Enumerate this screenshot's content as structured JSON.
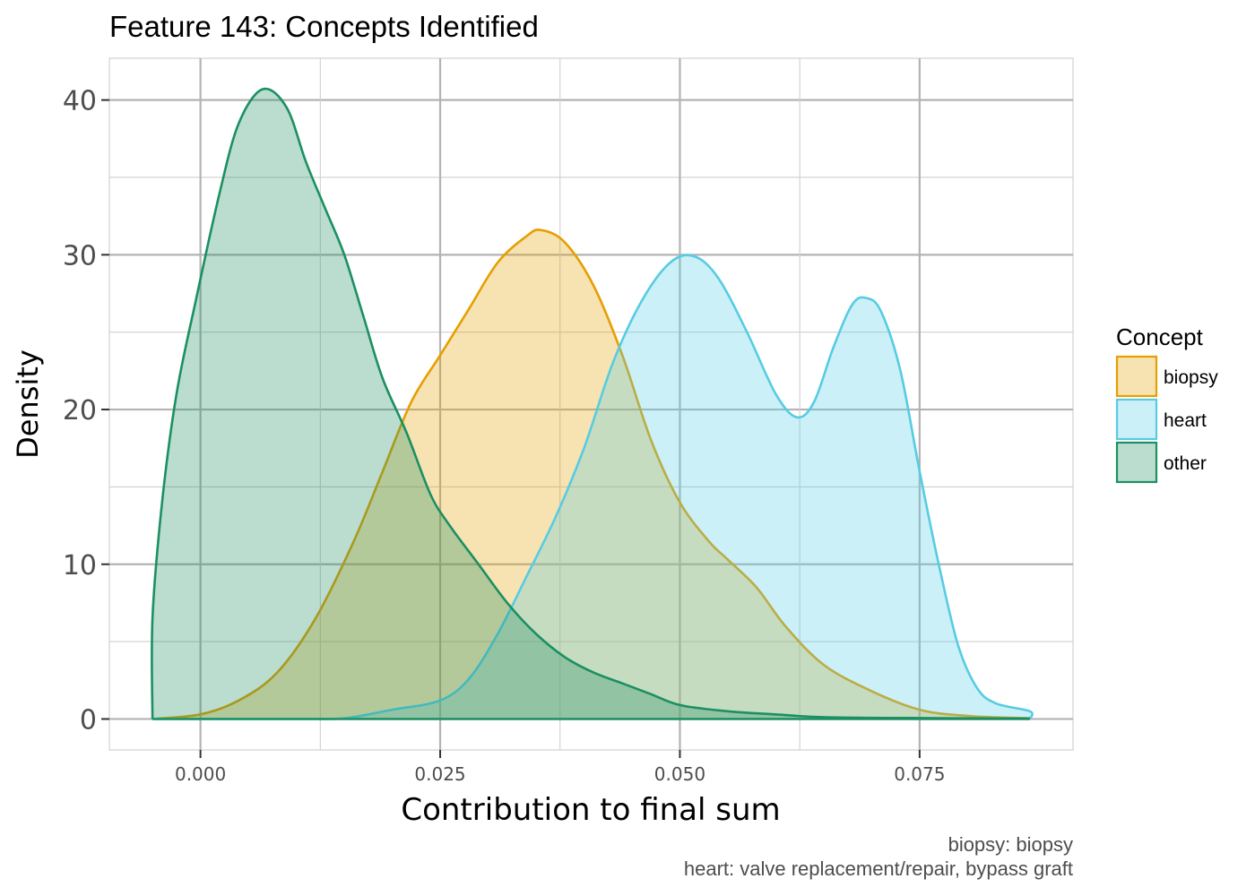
{
  "chart_data": {
    "type": "area",
    "title": "Feature 143: Concepts Identified",
    "xlabel": "Contribution to final sum",
    "ylabel": "Density",
    "xlim": [
      -0.0095,
      0.091
    ],
    "ylim": [
      -2,
      42.7
    ],
    "x_ticks": [
      0.0,
      0.025,
      0.05,
      0.075
    ],
    "x_tick_labels": [
      "0.000",
      "0.025",
      "0.050",
      "0.075"
    ],
    "y_ticks": [
      0,
      10,
      20,
      30,
      40
    ],
    "y_tick_labels": [
      "0",
      "10",
      "20",
      "30",
      "40"
    ],
    "grid": true,
    "legend": {
      "title": "Concept",
      "position": "right"
    },
    "caption": [
      "biopsy: biopsy",
      "heart: valve replacement/repair, bypass graft"
    ],
    "series": [
      {
        "name": "biopsy",
        "color": "#E69F00",
        "points": [
          [
            -0.005,
            0
          ],
          [
            0.0,
            0.3
          ],
          [
            0.004,
            1.2
          ],
          [
            0.008,
            3
          ],
          [
            0.012,
            6.5
          ],
          [
            0.016,
            11.5
          ],
          [
            0.019,
            16
          ],
          [
            0.022,
            20.5
          ],
          [
            0.025,
            23.5
          ],
          [
            0.028,
            26.5
          ],
          [
            0.031,
            29.5
          ],
          [
            0.034,
            31.2
          ],
          [
            0.0355,
            31.6
          ],
          [
            0.038,
            30.8
          ],
          [
            0.041,
            28
          ],
          [
            0.044,
            23.5
          ],
          [
            0.047,
            18
          ],
          [
            0.05,
            14
          ],
          [
            0.053,
            11.5
          ],
          [
            0.055,
            10.3
          ],
          [
            0.058,
            8.5
          ],
          [
            0.061,
            6
          ],
          [
            0.065,
            3.5
          ],
          [
            0.07,
            1.8
          ],
          [
            0.075,
            0.6
          ],
          [
            0.08,
            0.2
          ],
          [
            0.0865,
            0.05
          ]
        ]
      },
      {
        "name": "heart",
        "color": "#56CCE3",
        "points": [
          [
            -0.005,
            0
          ],
          [
            0.0,
            0
          ],
          [
            0.01,
            0
          ],
          [
            0.015,
            0.05
          ],
          [
            0.02,
            0.6
          ],
          [
            0.025,
            1.2
          ],
          [
            0.028,
            2.6
          ],
          [
            0.031,
            5.5
          ],
          [
            0.034,
            9.2
          ],
          [
            0.037,
            13
          ],
          [
            0.04,
            17.5
          ],
          [
            0.043,
            23
          ],
          [
            0.046,
            27
          ],
          [
            0.049,
            29.5
          ],
          [
            0.0515,
            29.9
          ],
          [
            0.054,
            28.5
          ],
          [
            0.057,
            25
          ],
          [
            0.06,
            21
          ],
          [
            0.0622,
            19.5
          ],
          [
            0.064,
            20.5
          ],
          [
            0.066,
            24
          ],
          [
            0.068,
            26.8
          ],
          [
            0.0695,
            27.2
          ],
          [
            0.071,
            26.3
          ],
          [
            0.073,
            22.5
          ],
          [
            0.075,
            16
          ],
          [
            0.077,
            10
          ],
          [
            0.079,
            4.8
          ],
          [
            0.081,
            2
          ],
          [
            0.083,
            1
          ],
          [
            0.0865,
            0.5
          ],
          [
            0.0865,
            0
          ]
        ]
      },
      {
        "name": "other",
        "color": "#1B9062",
        "points": [
          [
            -0.005,
            0
          ],
          [
            -0.005,
            6.5
          ],
          [
            -0.004,
            14
          ],
          [
            -0.0025,
            21
          ],
          [
            -0.0005,
            27
          ],
          [
            0.002,
            34
          ],
          [
            0.004,
            38.5
          ],
          [
            0.0065,
            40.7
          ],
          [
            0.009,
            39.5
          ],
          [
            0.011,
            36
          ],
          [
            0.013,
            33
          ],
          [
            0.015,
            30
          ],
          [
            0.017,
            26
          ],
          [
            0.019,
            22
          ],
          [
            0.0215,
            18.5
          ],
          [
            0.024,
            14.5
          ],
          [
            0.026,
            12.5
          ],
          [
            0.029,
            10
          ],
          [
            0.032,
            7.5
          ],
          [
            0.035,
            5.5
          ],
          [
            0.038,
            4
          ],
          [
            0.041,
            3
          ],
          [
            0.044,
            2.3
          ],
          [
            0.047,
            1.6
          ],
          [
            0.05,
            0.9
          ],
          [
            0.055,
            0.5
          ],
          [
            0.06,
            0.3
          ],
          [
            0.065,
            0.12
          ],
          [
            0.075,
            0.06
          ],
          [
            0.0865,
            0.03
          ]
        ]
      }
    ]
  }
}
